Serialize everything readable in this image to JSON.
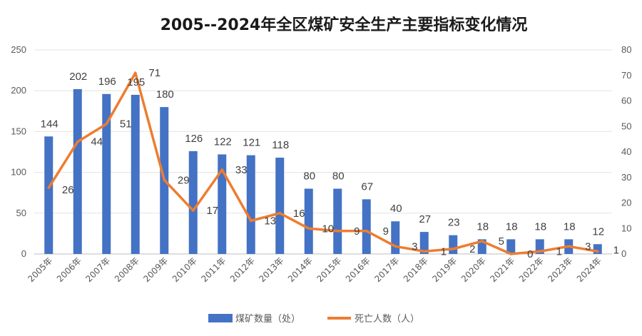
{
  "chart_data": {
    "type": "bar",
    "title": "2005--2024年全区煤矿安全生产主要指标变化情况",
    "categories": [
      "2005年",
      "2006年",
      "2007年",
      "2008年",
      "2009年",
      "2010年",
      "2011年",
      "2012年",
      "2013年",
      "2014年",
      "2015年",
      "2016年",
      "2017年",
      "2018年",
      "2019年",
      "2020年",
      "2021年",
      "2022年",
      "2023年",
      "2024年"
    ],
    "series": [
      {
        "name": "煤矿数量（处）",
        "type": "bar",
        "axis": "left",
        "color": "#4472C4",
        "values": [
          144,
          202,
          196,
          195,
          180,
          126,
          122,
          121,
          118,
          80,
          80,
          67,
          40,
          27,
          23,
          18,
          18,
          18,
          18,
          12
        ]
      },
      {
        "name": "死亡人数（人）",
        "type": "line",
        "axis": "right",
        "color": "#ED7D31",
        "values": [
          26,
          44,
          51,
          71,
          29,
          17,
          33,
          13,
          16,
          10,
          9,
          9,
          3,
          1,
          2,
          5,
          0,
          1,
          3,
          1
        ]
      }
    ],
    "y_left": {
      "range": [
        0,
        250
      ],
      "ticks": [
        "0",
        "50",
        "100",
        "150",
        "200",
        "250"
      ]
    },
    "y_right": {
      "range": [
        0,
        80
      ],
      "ticks": [
        "0",
        "10",
        "20",
        "30",
        "40",
        "50",
        "60",
        "70",
        "80"
      ]
    },
    "grid": true,
    "legend_position": "bottom"
  }
}
